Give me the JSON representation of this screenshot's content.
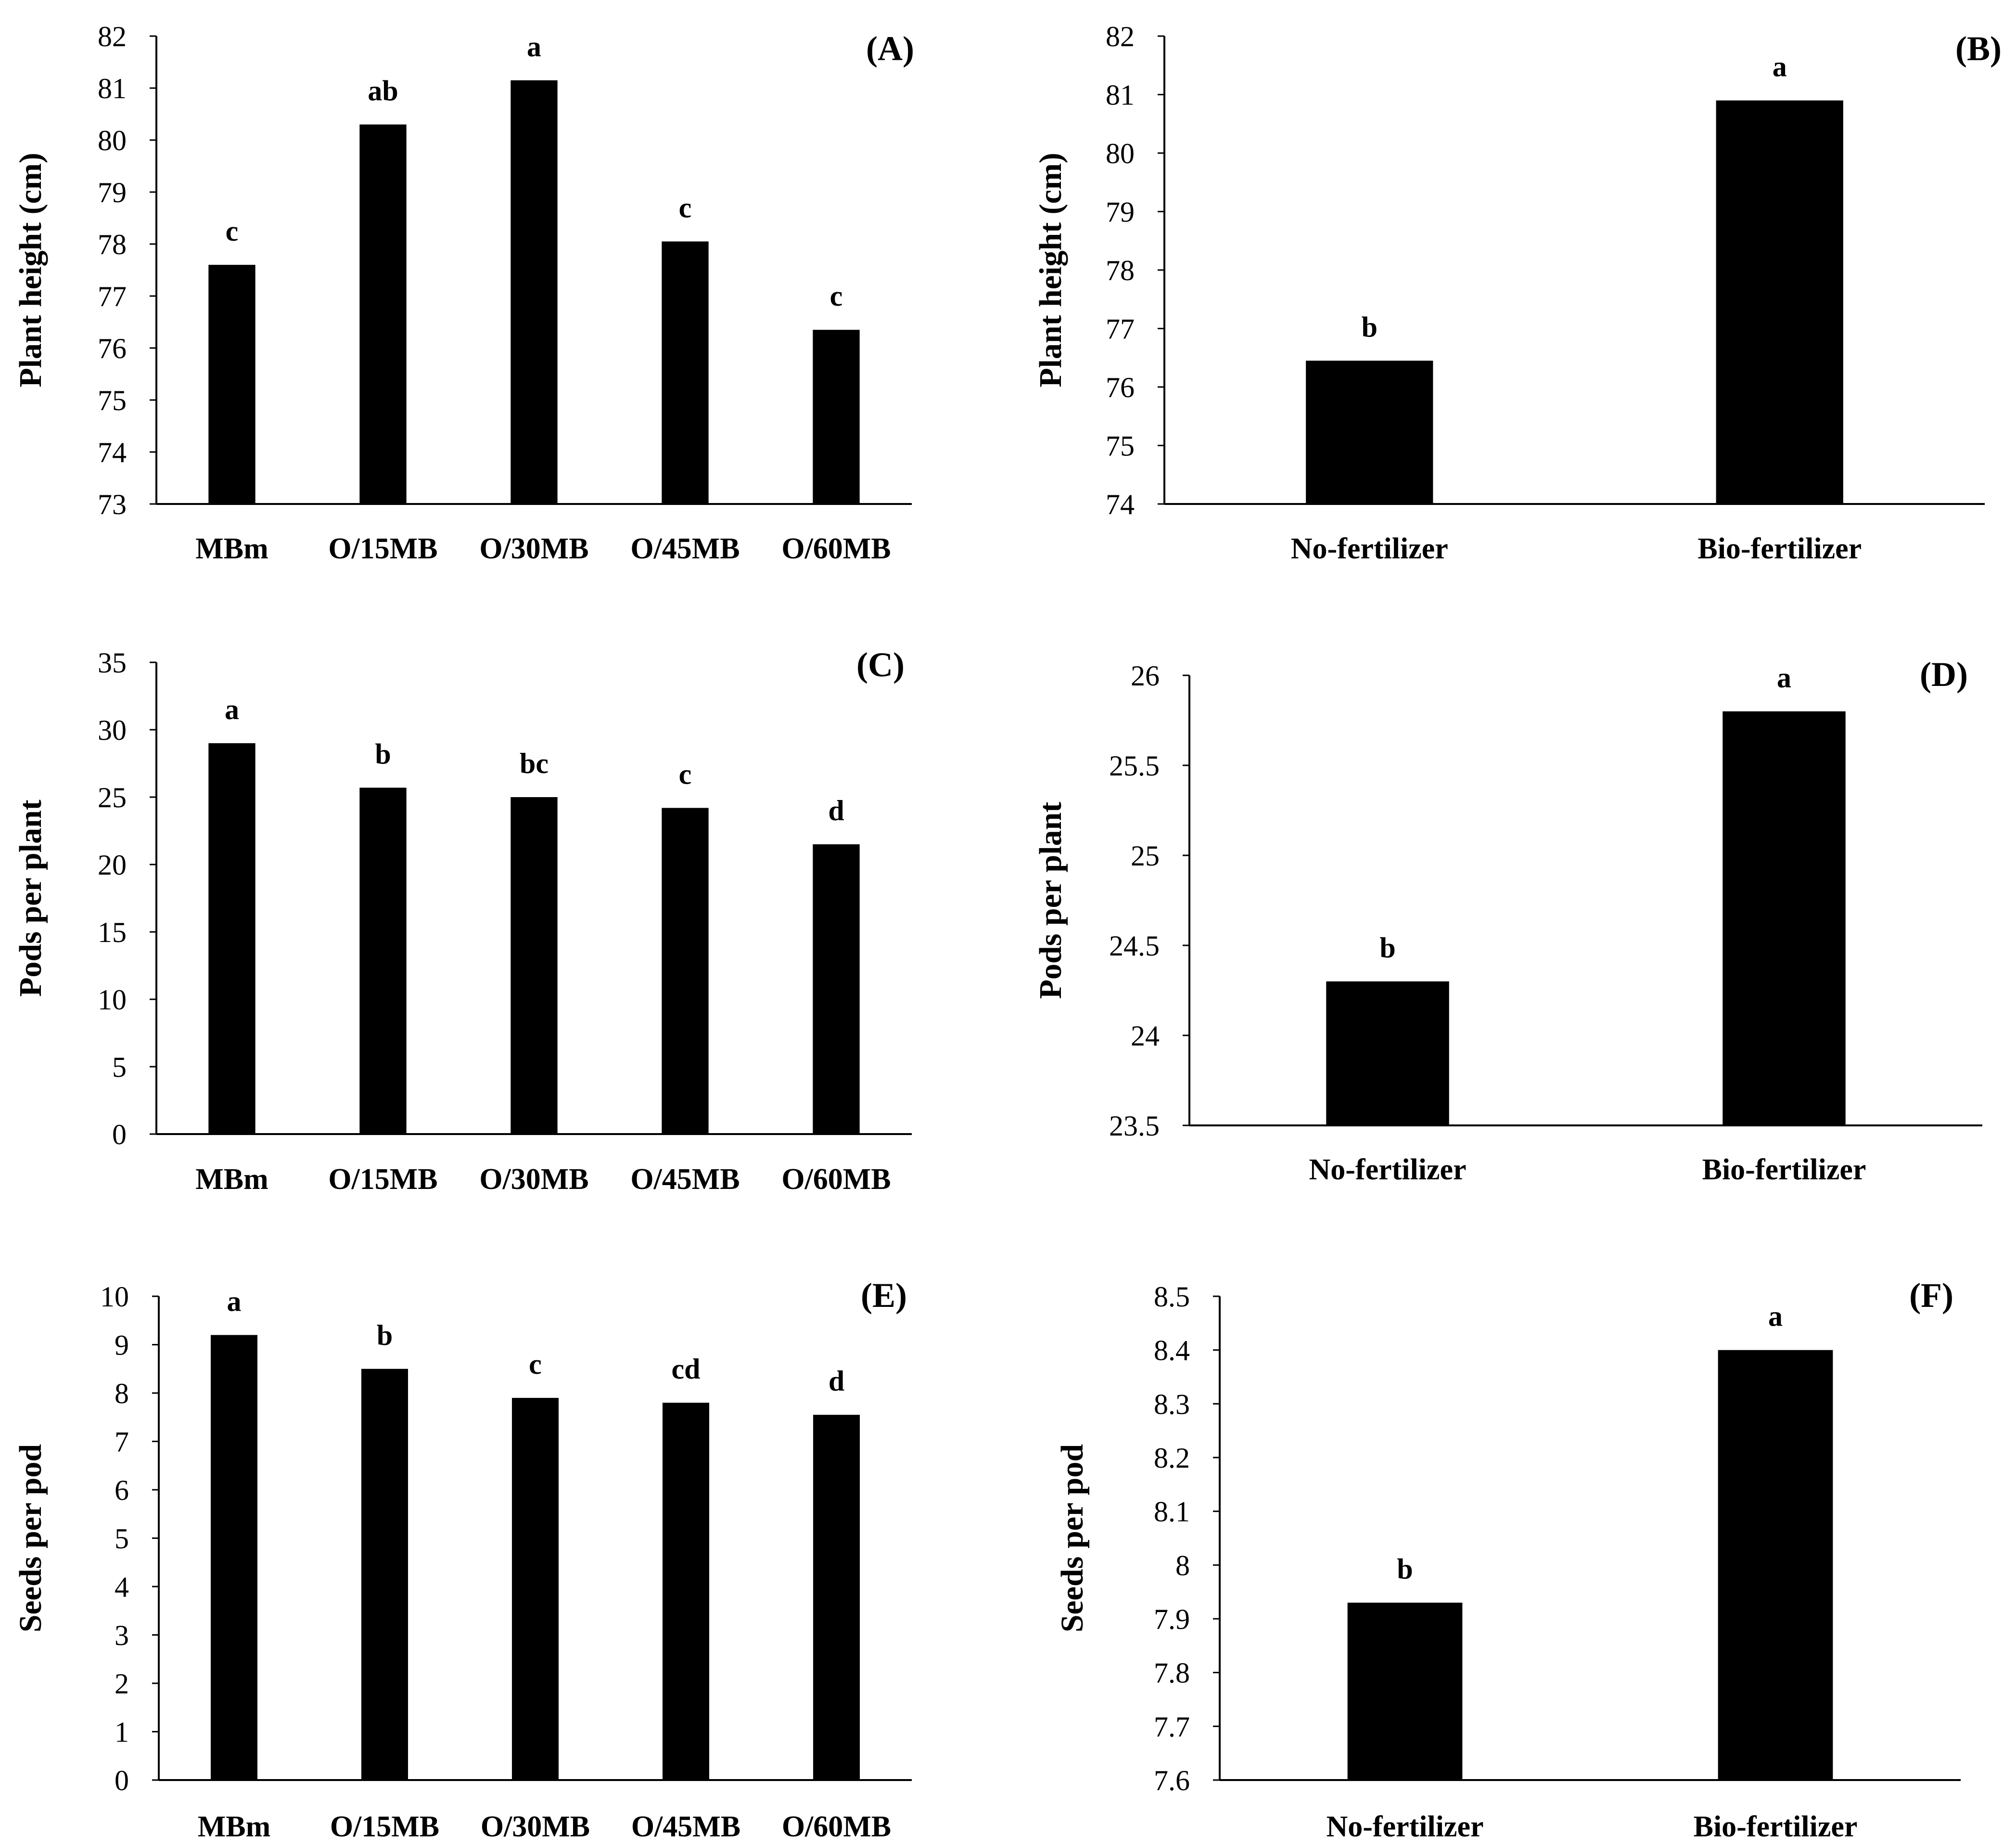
{
  "chart_data": [
    {
      "type": "bar",
      "panel_label": "(A)",
      "ylabel": "Plant height (cm)",
      "ylim": [
        73,
        82
      ],
      "yticks": [
        "73",
        "74",
        "75",
        "76",
        "77",
        "78",
        "79",
        "80",
        "81",
        "82"
      ],
      "categories": [
        "MBm",
        "O/15MB",
        "O/30MB",
        "O/45MB",
        "O/60MB"
      ],
      "values": [
        77.6,
        80.3,
        81.15,
        78.05,
        76.35
      ],
      "letters": [
        "c",
        "ab",
        "a",
        "c",
        "c"
      ],
      "bar_color": "#000000"
    },
    {
      "type": "bar",
      "panel_label": "(B)",
      "ylabel": "Plant height (cm)",
      "ylim": [
        74,
        82
      ],
      "yticks": [
        "74",
        "75",
        "76",
        "77",
        "78",
        "79",
        "80",
        "81",
        "82"
      ],
      "categories": [
        "No-fertilizer",
        "Bio-fertilizer"
      ],
      "values": [
        76.45,
        80.9
      ],
      "letters": [
        "b",
        "a"
      ],
      "bar_color": "#000000"
    },
    {
      "type": "bar",
      "panel_label": "(C)",
      "ylabel": "Pods per plant",
      "ylim": [
        0,
        35
      ],
      "yticks": [
        "0",
        "5",
        "10",
        "15",
        "20",
        "25",
        "30",
        "35"
      ],
      "categories": [
        "MBm",
        "O/15MB",
        "O/30MB",
        "O/45MB",
        "O/60MB"
      ],
      "values": [
        29.0,
        25.7,
        25.0,
        24.2,
        21.5
      ],
      "letters": [
        "a",
        "b",
        "bc",
        "c",
        "d"
      ],
      "bar_color": "#000000"
    },
    {
      "type": "bar",
      "panel_label": "(D)",
      "ylabel": "Pods per plant",
      "ylim": [
        23.5,
        26
      ],
      "yticks": [
        "23.5",
        "24",
        "24.5",
        "25",
        "25.5",
        "26"
      ],
      "categories": [
        "No-fertilizer",
        "Bio-fertilizer"
      ],
      "values": [
        24.3,
        25.8
      ],
      "letters": [
        "b",
        "a"
      ],
      "bar_color": "#000000"
    },
    {
      "type": "bar",
      "panel_label": "(E)",
      "ylabel": "Seeds per pod",
      "ylim": [
        0,
        10
      ],
      "yticks": [
        "0",
        "1",
        "2",
        "3",
        "4",
        "5",
        "6",
        "7",
        "8",
        "9",
        "10"
      ],
      "categories": [
        "MBm",
        "O/15MB",
        "O/30MB",
        "O/45MB",
        "O/60MB"
      ],
      "values": [
        9.2,
        8.5,
        7.9,
        7.8,
        7.55
      ],
      "letters": [
        "a",
        "b",
        "c",
        "cd",
        "d"
      ],
      "bar_color": "#000000"
    },
    {
      "type": "bar",
      "panel_label": "(F)",
      "ylabel": "Seeds per pod",
      "ylim": [
        7.6,
        8.5
      ],
      "yticks": [
        "7.6",
        "7.7",
        "7.8",
        "7.9",
        "8",
        "8.1",
        "8.2",
        "8.3",
        "8.4",
        "8.5"
      ],
      "categories": [
        "No-fertilizer",
        "Bio-fertilizer"
      ],
      "values": [
        7.93,
        8.4
      ],
      "letters": [
        "b",
        "a"
      ],
      "bar_color": "#000000"
    }
  ]
}
